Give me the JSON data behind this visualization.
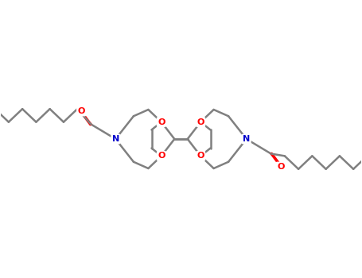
{
  "background": "#ffffff",
  "bond_color": "#808080",
  "oxygen_color": "#ff0000",
  "nitrogen_color": "#0000cc",
  "line_width": 1.8,
  "figsize": [
    4.55,
    3.5
  ],
  "dpi": 100,
  "xlim": [
    -5.5,
    5.5
  ],
  "ylim": [
    -2.2,
    2.2
  ]
}
